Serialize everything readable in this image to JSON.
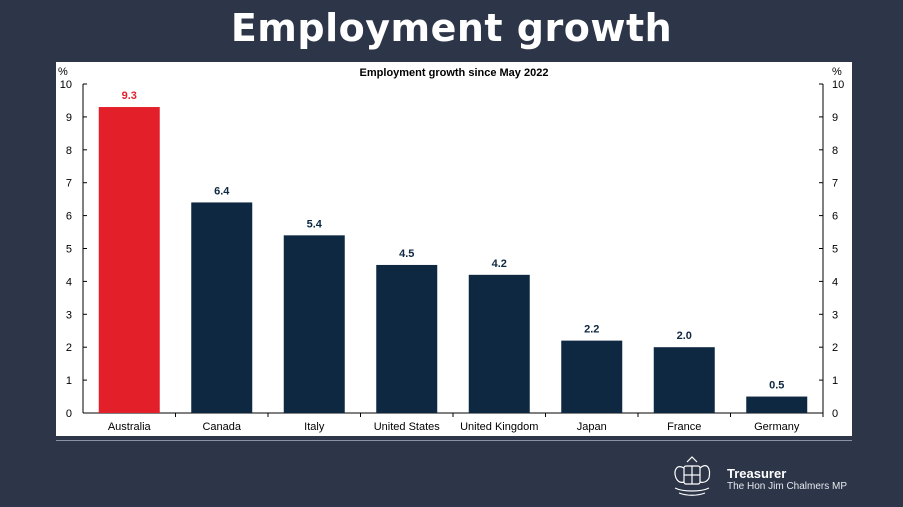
{
  "slide": {
    "title": "Employment growth"
  },
  "footer": {
    "title": "Treasurer",
    "subtitle": "The Hon Jim Chalmers MP",
    "logo_icon": "coat-of-arms-icon"
  },
  "colors": {
    "highlight": "#e3202a",
    "bar": "#0e2842",
    "background": "#2d3548",
    "highlight_label": "#e3202a",
    "label": "#0e2842"
  },
  "chart_data": {
    "type": "bar",
    "title": "Employment growth since May 2022",
    "y_unit_left": "%",
    "y_unit_right": "%",
    "ylim": [
      0,
      10
    ],
    "yticks": [
      "0",
      "1",
      "2",
      "3",
      "4",
      "5",
      "6",
      "7",
      "8",
      "9",
      "10"
    ],
    "categories": [
      "Australia",
      "Canada",
      "Italy",
      "United States",
      "United Kingdom",
      "Japan",
      "France",
      "Germany"
    ],
    "values": [
      9.3,
      6.4,
      5.4,
      4.5,
      4.2,
      2.2,
      2.0,
      0.5
    ],
    "value_labels": [
      "9.3",
      "6.4",
      "5.4",
      "4.5",
      "4.2",
      "2.2",
      "2.0",
      "0.5"
    ],
    "highlight_index": 0,
    "grid": false,
    "legend": "none"
  }
}
